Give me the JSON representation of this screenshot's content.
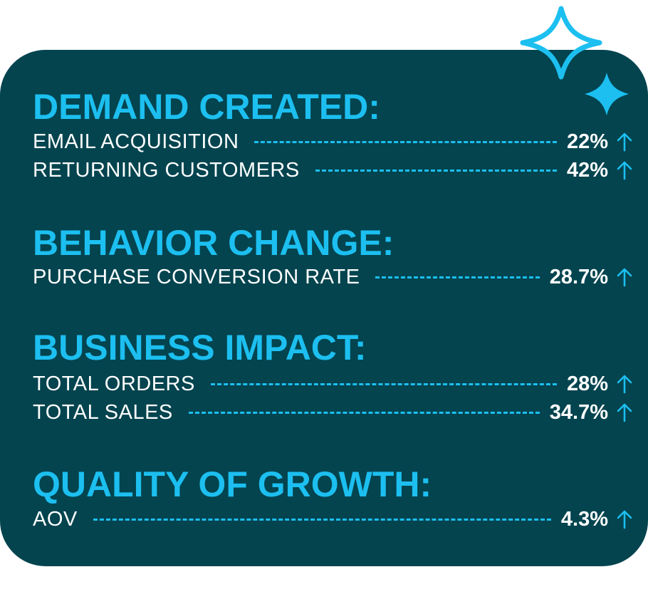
{
  "colors": {
    "card_background": "#03444f",
    "accent": "#1cbff0",
    "text": "#ffffff"
  },
  "decorations": [
    "sparkle-icon",
    "sparkle-icon"
  ],
  "sections": [
    {
      "title": "DEMAND CREATED:",
      "metrics": [
        {
          "label": "EMAIL ACQUISITION",
          "value": "22%",
          "trend": "up-arrow-icon"
        },
        {
          "label": "RETURNING CUSTOMERS",
          "value": "42%",
          "trend": "up-arrow-icon"
        }
      ]
    },
    {
      "title": "BEHAVIOR CHANGE:",
      "metrics": [
        {
          "label": "PURCHASE CONVERSION RATE",
          "value": "28.7%",
          "trend": "up-arrow-icon"
        }
      ]
    },
    {
      "title": "BUSINESS IMPACT:",
      "metrics": [
        {
          "label": "TOTAL ORDERS",
          "value": "28%",
          "trend": "up-arrow-icon"
        },
        {
          "label": "TOTAL SALES",
          "value": "34.7%",
          "trend": "up-arrow-icon"
        }
      ]
    },
    {
      "title": "QUALITY OF GROWTH:",
      "metrics": [
        {
          "label": "AOV",
          "value": "4.3%",
          "trend": "up-arrow-icon"
        }
      ]
    }
  ]
}
